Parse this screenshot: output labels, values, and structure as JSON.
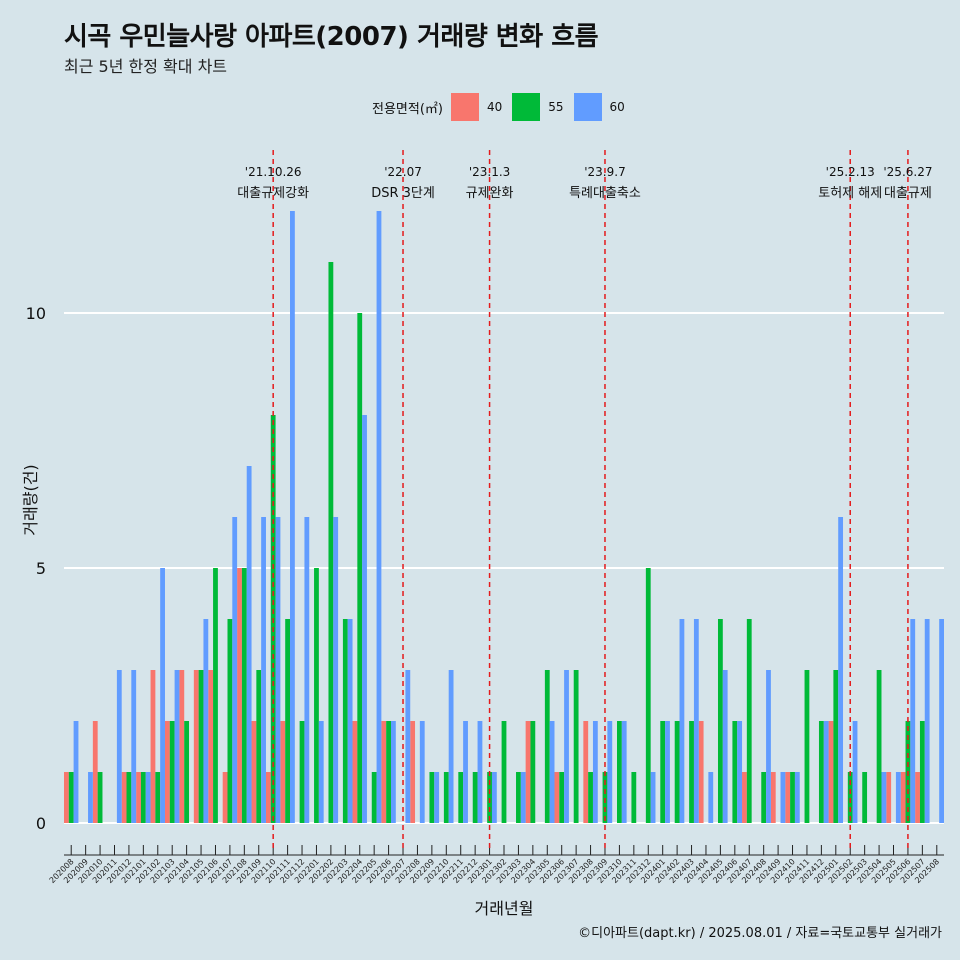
{
  "title": "시곡 우민늘사랑 아파트(2007) 거래량 변화 흐름",
  "subtitle": "최근 5년 한정 확대 차트",
  "caption": "©디아파트(dapt.kr) / 2025.08.01 / 자료=국토교통부 실거래가",
  "legend": {
    "title": "전용면적(㎡)",
    "items": [
      {
        "label": "40",
        "color": "#F8766D"
      },
      {
        "label": "55",
        "color": "#00BA38"
      },
      {
        "label": "60",
        "color": "#619CFF"
      }
    ]
  },
  "chart_data": {
    "type": "bar",
    "xlabel": "거래년월",
    "ylabel": "거래량(건)",
    "ylim": [
      0,
      12
    ],
    "yticks": [
      0,
      5,
      10
    ],
    "grid": true,
    "legend_position": "top",
    "categories": [
      "202008",
      "202009",
      "202010",
      "202011",
      "202012",
      "202101",
      "202102",
      "202103",
      "202104",
      "202105",
      "202106",
      "202107",
      "202108",
      "202109",
      "202110",
      "202111",
      "202112",
      "202201",
      "202202",
      "202203",
      "202204",
      "202205",
      "202206",
      "202207",
      "202208",
      "202209",
      "202210",
      "202211",
      "202212",
      "202301",
      "202302",
      "202303",
      "202304",
      "202305",
      "202306",
      "202307",
      "202308",
      "202309",
      "202310",
      "202311",
      "202312",
      "202401",
      "202402",
      "202403",
      "202404",
      "202405",
      "202406",
      "202407",
      "202408",
      "202409",
      "202410",
      "202411",
      "202412",
      "202501",
      "202502",
      "202503",
      "202504",
      "202505",
      "202506",
      "202507",
      "202508"
    ],
    "series": [
      {
        "name": "40",
        "color": "#F8766D",
        "values": [
          1,
          0,
          2,
          0,
          1,
          1,
          3,
          2,
          3,
          3,
          3,
          1,
          5,
          2,
          1,
          2,
          0,
          0,
          0,
          0,
          2,
          0,
          2,
          0,
          2,
          0,
          0,
          0,
          0,
          0,
          0,
          0,
          2,
          0,
          1,
          0,
          2,
          0,
          0,
          0,
          0,
          0,
          0,
          0,
          2,
          0,
          0,
          1,
          0,
          1,
          1,
          0,
          0,
          2,
          0,
          0,
          0,
          1,
          1,
          1,
          0
        ]
      },
      {
        "name": "55",
        "color": "#00BA38",
        "values": [
          1,
          0,
          1,
          0,
          1,
          1,
          1,
          2,
          2,
          3,
          5,
          4,
          5,
          3,
          8,
          4,
          2,
          5,
          11,
          4,
          10,
          1,
          2,
          0,
          0,
          1,
          1,
          1,
          1,
          1,
          2,
          1,
          2,
          3,
          1,
          3,
          1,
          1,
          2,
          1,
          5,
          2,
          2,
          2,
          0,
          4,
          2,
          4,
          1,
          0,
          1,
          3,
          2,
          3,
          1,
          1,
          3,
          0,
          2,
          2,
          0
        ]
      },
      {
        "name": "60",
        "color": "#619CFF",
        "values": [
          2,
          1,
          0,
          3,
          3,
          1,
          5,
          3,
          0,
          4,
          0,
          6,
          7,
          6,
          6,
          12,
          6,
          2,
          6,
          4,
          8,
          12,
          2,
          3,
          2,
          1,
          3,
          2,
          2,
          1,
          0,
          1,
          0,
          2,
          3,
          0,
          2,
          2,
          2,
          0,
          1,
          2,
          4,
          4,
          1,
          3,
          2,
          0,
          3,
          1,
          1,
          0,
          2,
          6,
          2,
          0,
          1,
          1,
          4,
          4,
          4
        ]
      }
    ],
    "events": [
      {
        "date": "'21.10.26",
        "label": "대출규제강화",
        "at": "202110"
      },
      {
        "date": "'22.07",
        "label": "DSR 3단계",
        "at": "202207"
      },
      {
        "date": "'23.1.3",
        "label": "규제완화",
        "at": "202301"
      },
      {
        "date": "'23.9.7",
        "label": "특례대출축소",
        "at": "202309"
      },
      {
        "date": "'25.2.13",
        "label": "토허제 해제",
        "at": "202502"
      },
      {
        "date": "'25.6.27",
        "label": "대출규제",
        "at": "202506"
      }
    ]
  }
}
